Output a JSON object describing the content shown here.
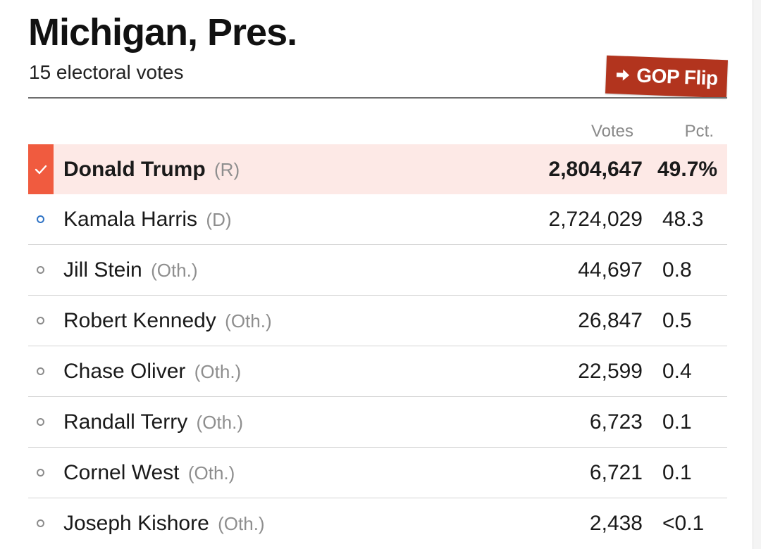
{
  "race": {
    "title": "Michigan, Pres.",
    "subtitle": "15 electoral votes",
    "flip_label": "GOP Flip",
    "flip_color": "#b2341e"
  },
  "columns": {
    "votes": "Votes",
    "pct": "Pct."
  },
  "colors": {
    "winner_row_bg": "#fde9e6",
    "winner_check_bg": "#f05b3f",
    "dem_dot": "#2f73c5",
    "other_dot": "#8c8c8c"
  },
  "candidates": [
    {
      "name": "Donald Trump",
      "party": "(R)",
      "votes": "2,804,647",
      "pct": "49.7%",
      "winner": true
    },
    {
      "name": "Kamala Harris",
      "party": "(D)",
      "votes": "2,724,029",
      "pct": "48.3"
    },
    {
      "name": "Jill Stein",
      "party": "(Oth.)",
      "votes": "44,697",
      "pct": "0.8"
    },
    {
      "name": "Robert Kennedy",
      "party": "(Oth.)",
      "votes": "26,847",
      "pct": "0.5"
    },
    {
      "name": "Chase Oliver",
      "party": "(Oth.)",
      "votes": "22,599",
      "pct": "0.4"
    },
    {
      "name": "Randall Terry",
      "party": "(Oth.)",
      "votes": "6,723",
      "pct": "0.1"
    },
    {
      "name": "Cornel West",
      "party": "(Oth.)",
      "votes": "6,721",
      "pct": "0.1"
    },
    {
      "name": "Joseph Kishore",
      "party": "(Oth.)",
      "votes": "2,438",
      "pct": "<0.1"
    }
  ]
}
